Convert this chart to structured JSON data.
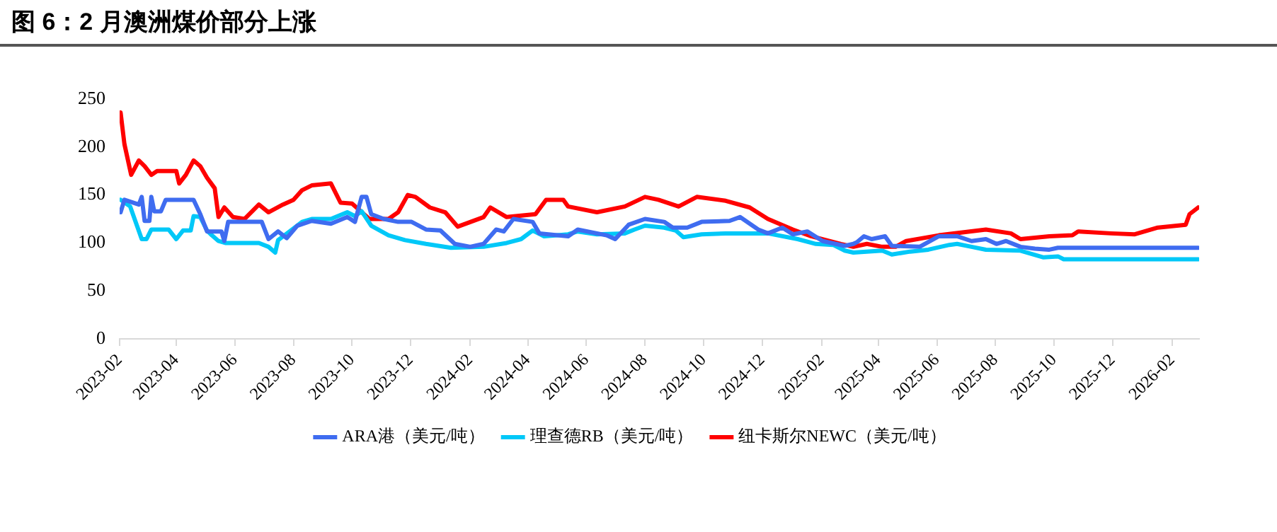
{
  "chart_data": {
    "type": "line",
    "title": "图 6：2 月澳洲煤价部分上涨",
    "xlim": [
      "2023-02-01",
      "2026-03-01"
    ],
    "xticks": [
      "2023-02",
      "2023-04",
      "2023-06",
      "2023-08",
      "2023-10",
      "2023-12",
      "2024-02",
      "2024-04",
      "2024-06",
      "2024-08",
      "2024-10",
      "2024-12",
      "2025-02",
      "2025-04",
      "2025-06",
      "2025-08",
      "2025-10",
      "2025-12",
      "2026-02"
    ],
    "ylim": [
      0,
      250
    ],
    "yticks": [
      0,
      50,
      100,
      150,
      200,
      250
    ],
    "grid": false,
    "legend": "bottom",
    "marker": "none",
    "line_style": "solid",
    "series": [
      {
        "name": "ARA港（美元/吨）",
        "color": "#3f6cf0",
        "x": [
          "2023-02-02",
          "2023-02-06",
          "2023-02-21",
          "2023-02-24",
          "2023-02-27",
          "2023-03-04",
          "2023-03-06",
          "2023-03-09",
          "2023-03-16",
          "2023-03-21",
          "2023-04-19",
          "2023-04-26",
          "2023-05-03",
          "2023-05-18",
          "2023-05-21",
          "2023-05-25",
          "2023-06-29",
          "2023-07-06",
          "2023-07-16",
          "2023-07-25",
          "2023-08-05",
          "2023-08-20",
          "2023-09-09",
          "2023-09-26",
          "2023-10-04",
          "2023-10-11",
          "2023-10-16",
          "2023-10-21",
          "2023-11-03",
          "2023-11-18",
          "2023-12-02",
          "2023-12-17",
          "2024-01-01",
          "2024-01-16",
          "2024-02-01",
          "2024-02-15",
          "2024-02-28",
          "2024-03-07",
          "2024-03-17",
          "2024-04-06",
          "2024-04-13",
          "2024-05-13",
          "2024-05-23",
          "2024-06-22",
          "2024-07-01",
          "2024-07-15",
          "2024-08-01",
          "2024-08-21",
          "2024-08-30",
          "2024-09-14",
          "2024-09-29",
          "2024-10-28",
          "2024-11-08",
          "2024-11-27",
          "2024-12-07",
          "2024-12-22",
          "2025-01-02",
          "2025-01-17",
          "2025-02-02",
          "2025-02-25",
          "2025-03-06",
          "2025-03-10",
          "2025-03-17",
          "2025-03-25",
          "2025-04-08",
          "2025-04-15",
          "2025-05-14",
          "2025-06-03",
          "2025-06-22",
          "2025-07-07",
          "2025-07-22",
          "2025-08-02",
          "2025-08-12",
          "2025-08-27",
          "2025-09-11",
          "2025-09-26",
          "2025-10-05",
          "2026-02-28"
        ],
        "values": [
          132,
          145,
          140,
          148,
          123,
          123,
          148,
          133,
          133,
          145,
          145,
          130,
          112,
          112,
          102,
          122,
          122,
          104,
          112,
          105,
          118,
          123,
          120,
          127,
          122,
          148,
          148,
          130,
          125,
          122,
          122,
          114,
          113,
          99,
          96,
          99,
          114,
          112,
          125,
          122,
          110,
          107,
          114,
          108,
          104,
          119,
          125,
          122,
          116,
          116,
          122,
          123,
          127,
          114,
          110,
          116,
          109,
          112,
          102,
          97,
          99,
          101,
          107,
          104,
          107,
          97,
          96,
          107,
          107,
          102,
          104,
          99,
          102,
          96,
          94,
          93,
          95,
          95
        ]
      },
      {
        "name": "理查德RB（美元/吨）",
        "color": "#00c8f8",
        "x": [
          "2023-02-02",
          "2023-02-12",
          "2023-02-24",
          "2023-03-01",
          "2023-03-06",
          "2023-03-24",
          "2023-04-01",
          "2023-04-08",
          "2023-04-16",
          "2023-04-19",
          "2023-04-26",
          "2023-05-03",
          "2023-05-08",
          "2023-05-15",
          "2023-05-22",
          "2023-06-26",
          "2023-07-06",
          "2023-07-13",
          "2023-07-16",
          "2023-07-28",
          "2023-08-10",
          "2023-08-20",
          "2023-09-09",
          "2023-09-26",
          "2023-10-04",
          "2023-10-11",
          "2023-10-21",
          "2023-11-08",
          "2023-11-25",
          "2023-12-17",
          "2024-01-12",
          "2024-02-15",
          "2024-03-10",
          "2024-03-25",
          "2024-04-06",
          "2024-04-18",
          "2024-05-13",
          "2024-05-23",
          "2024-06-12",
          "2024-07-11",
          "2024-07-21",
          "2024-08-01",
          "2024-08-21",
          "2024-09-02",
          "2024-09-10",
          "2024-09-29",
          "2024-10-24",
          "2024-12-07",
          "2025-01-07",
          "2025-01-26",
          "2025-02-13",
          "2025-02-25",
          "2025-03-06",
          "2025-04-05",
          "2025-04-15",
          "2025-05-04",
          "2025-05-23",
          "2025-06-14",
          "2025-06-22",
          "2025-07-07",
          "2025-07-22",
          "2025-08-27",
          "2025-09-20",
          "2025-10-05",
          "2025-10-11",
          "2026-02-28"
        ],
        "values": [
          145,
          138,
          104,
          104,
          114,
          114,
          104,
          113,
          113,
          128,
          127,
          113,
          108,
          102,
          100,
          100,
          96,
          90,
          103,
          112,
          122,
          125,
          125,
          132,
          128,
          133,
          118,
          108,
          103,
          99,
          95,
          96,
          100,
          104,
          113,
          107,
          109,
          112,
          109,
          110,
          114,
          118,
          116,
          113,
          106,
          109,
          110,
          110,
          104,
          99,
          98,
          92,
          90,
          92,
          88,
          91,
          93,
          98,
          99,
          96,
          93,
          92,
          85,
          86,
          83,
          83
        ]
      },
      {
        "name": "纽卡斯尔NEWC（美元/吨）",
        "color": "#ff0000",
        "x": [
          "2023-02-02",
          "2023-02-06",
          "2023-02-13",
          "2023-02-21",
          "2023-02-27",
          "2023-03-06",
          "2023-03-12",
          "2023-04-01",
          "2023-04-04",
          "2023-04-11",
          "2023-04-19",
          "2023-04-26",
          "2023-05-03",
          "2023-05-11",
          "2023-05-15",
          "2023-05-21",
          "2023-05-30",
          "2023-06-11",
          "2023-06-26",
          "2023-07-06",
          "2023-07-21",
          "2023-08-01",
          "2023-08-10",
          "2023-08-20",
          "2023-09-09",
          "2023-09-19",
          "2023-10-01",
          "2023-10-19",
          "2023-11-08",
          "2023-11-18",
          "2023-11-28",
          "2023-12-06",
          "2023-12-21",
          "2024-01-06",
          "2024-01-19",
          "2024-02-15",
          "2024-02-22",
          "2024-03-10",
          "2024-04-09",
          "2024-04-20",
          "2024-05-08",
          "2024-05-13",
          "2024-06-12",
          "2024-07-11",
          "2024-08-01",
          "2024-08-15",
          "2024-09-05",
          "2024-09-24",
          "2024-10-24",
          "2024-11-18",
          "2024-12-07",
          "2025-01-02",
          "2025-01-21",
          "2025-02-21",
          "2025-03-06",
          "2025-03-20",
          "2025-04-05",
          "2025-04-19",
          "2025-04-30",
          "2025-06-03",
          "2025-07-22",
          "2025-08-17",
          "2025-08-27",
          "2025-09-26",
          "2025-10-20",
          "2025-10-26",
          "2025-11-29",
          "2025-12-24",
          "2026-01-17",
          "2026-02-15",
          "2026-02-19",
          "2026-02-28"
        ],
        "values": [
          236,
          203,
          171,
          186,
          180,
          171,
          175,
          175,
          162,
          171,
          186,
          180,
          168,
          157,
          127,
          137,
          127,
          125,
          140,
          132,
          140,
          145,
          155,
          160,
          162,
          142,
          141,
          125,
          125,
          132,
          150,
          148,
          137,
          132,
          117,
          127,
          137,
          127,
          130,
          145,
          145,
          138,
          132,
          138,
          148,
          145,
          138,
          148,
          144,
          137,
          125,
          114,
          107,
          99,
          96,
          99,
          96,
          96,
          102,
          108,
          114,
          110,
          104,
          107,
          108,
          112,
          110,
          109,
          116,
          119,
          130,
          137
        ]
      }
    ]
  }
}
